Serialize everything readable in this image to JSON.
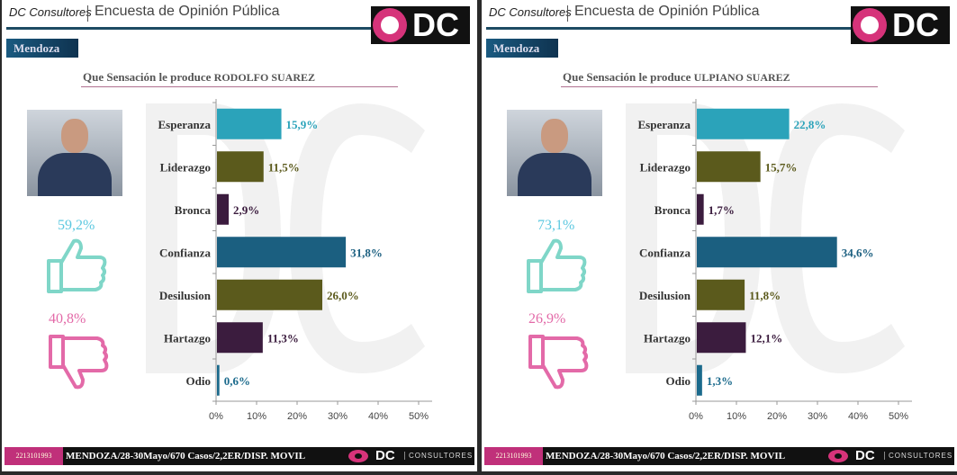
{
  "brand": "DC Consultores",
  "survey_title": "Encuesta de Opinión Pública",
  "logo_text": "DC",
  "region": "Mendoza",
  "footer": {
    "phone": "2213101993",
    "info": "MENDOZA/28-30Mayo/670 Casos/2,2ER/DISP. MOVIL",
    "logo_dc": "DC",
    "logo_consultores": "CONSULTORES"
  },
  "panels": [
    {
      "question": "Que Sensación le produce",
      "name": "RODOLFO SUAREZ",
      "positive": "59,2%",
      "negative": "40,8%"
    },
    {
      "question": "Que Sensación le produce",
      "name": "ULPIANO SUAREZ",
      "positive": "73,1%",
      "negative": "26,9%"
    }
  ],
  "chart_data": [
    {
      "type": "bar",
      "orientation": "horizontal",
      "title": "Que Sensación le produce RODOLFO SUAREZ",
      "categories": [
        "Esperanza",
        "Liderazgo",
        "Bronca",
        "Confianza",
        "Desilusion",
        "Hartazgo",
        "Odio"
      ],
      "values": [
        15.9,
        11.5,
        2.9,
        31.8,
        26.0,
        11.3,
        0.6
      ],
      "labels": [
        "15,9%",
        "11,5%",
        "2,9%",
        "31,8%",
        "26,0%",
        "11,3%",
        "0,6%"
      ],
      "colors": [
        "#2ba3ba",
        "#5b5a1c",
        "#3b1c3e",
        "#1b5f80",
        "#5b5a1c",
        "#3b1c3e",
        "#1b6a8c"
      ],
      "xticks": [
        "0%",
        "10%",
        "20%",
        "30%",
        "40%",
        "50%"
      ],
      "xlim": [
        0,
        50
      ]
    },
    {
      "type": "bar",
      "orientation": "horizontal",
      "title": "Que Sensación le produce ULPIANO SUAREZ",
      "categories": [
        "Esperanza",
        "Liderazgo",
        "Bronca",
        "Confianza",
        "Desilusion",
        "Hartazgo",
        "Odio"
      ],
      "values": [
        22.8,
        15.7,
        1.7,
        34.6,
        11.8,
        12.1,
        1.3
      ],
      "labels": [
        "22,8%",
        "15,7%",
        "1,7%",
        "34,6%",
        "11,8%",
        "12,1%",
        "1,3%"
      ],
      "colors": [
        "#2ba3ba",
        "#5b5a1c",
        "#3b1c3e",
        "#1b5f80",
        "#5b5a1c",
        "#3b1c3e",
        "#1b6a8c"
      ],
      "xticks": [
        "0%",
        "10%",
        "20%",
        "30%",
        "40%",
        "50%"
      ],
      "xlim": [
        0,
        50
      ]
    }
  ]
}
